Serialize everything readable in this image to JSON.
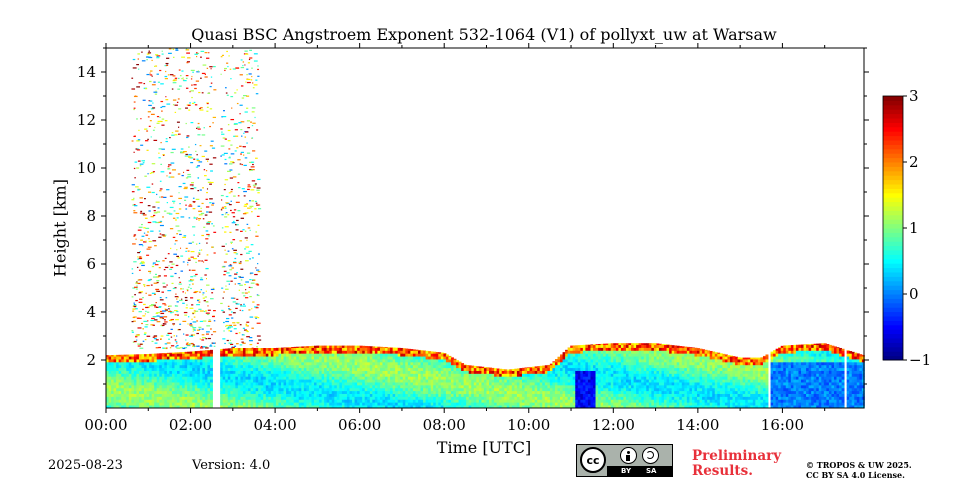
{
  "chart_data": {
    "type": "heatmap",
    "title": "Quasi BSC Angstroem Exponent 532-1064 (V1) of pollyxt_uw at Warsaw",
    "xlabel": "Time [UTC]",
    "ylabel": "Height [km]",
    "x_ticks": [
      "00:00",
      "02:00",
      "04:00",
      "06:00",
      "08:00",
      "10:00",
      "12:00",
      "14:00",
      "16:00"
    ],
    "x_tick_hours": [
      0,
      2,
      4,
      6,
      8,
      10,
      12,
      14,
      16
    ],
    "y_ticks": [
      "2",
      "4",
      "6",
      "8",
      "10",
      "12",
      "14"
    ],
    "y_tick_values": [
      2,
      4,
      6,
      8,
      10,
      12,
      14
    ],
    "xlim_hours": [
      0,
      17.93
    ],
    "ylim_km": [
      0,
      15
    ],
    "colorbar": {
      "ticks": [
        "3",
        "2",
        "1",
        "0",
        "−1"
      ],
      "tick_values": [
        3,
        2,
        1,
        0,
        -1
      ],
      "range": [
        -1,
        3
      ],
      "colormap": "jet"
    },
    "boundary_layer_top_km": [
      [
        0.0,
        2.2
      ],
      [
        1.0,
        2.25
      ],
      [
        2.0,
        2.35
      ],
      [
        3.0,
        2.5
      ],
      [
        4.0,
        2.5
      ],
      [
        5.0,
        2.6
      ],
      [
        6.0,
        2.6
      ],
      [
        7.0,
        2.5
      ],
      [
        8.0,
        2.3
      ],
      [
        8.5,
        1.8
      ],
      [
        9.5,
        1.6
      ],
      [
        10.5,
        1.8
      ],
      [
        11.0,
        2.6
      ],
      [
        12.0,
        2.7
      ],
      [
        13.0,
        2.7
      ],
      [
        14.0,
        2.5
      ],
      [
        15.0,
        2.1
      ],
      [
        15.5,
        2.1
      ],
      [
        16.0,
        2.6
      ],
      [
        17.0,
        2.7
      ],
      [
        17.93,
        2.2
      ]
    ],
    "cloud_layer_km": {
      "time_range_hours": [
        0.6,
        3.6
      ],
      "height_range_km": [
        2.5,
        15
      ],
      "mean_value": 1.5
    },
    "data_gaps_hours": [
      [
        2.55,
        2.7
      ],
      [
        15.65,
        15.75
      ],
      [
        17.45,
        17.55
      ]
    ],
    "low_value_regions": [
      {
        "time_range_hours": [
          11.05,
          11.55
        ],
        "height_range_km": [
          0,
          1.5
        ],
        "value": -0.5
      },
      {
        "time_range_hours": [
          15.65,
          17.93
        ],
        "height_range_km": [
          0,
          1.9
        ],
        "value": 0.0
      }
    ]
  },
  "footer": {
    "date": "2025-08-23",
    "version": "Version: 4.0",
    "preliminary_line1": "Preliminary",
    "preliminary_line2": "Results.",
    "copyright_line1": "© TROPOS & UW 2025.",
    "copyright_line2": "CC BY SA 4.0 License.",
    "cc_text": "cc",
    "by_text": "BY",
    "sa_text": "SA"
  },
  "colors": {
    "accent_red": "#e8303a"
  }
}
